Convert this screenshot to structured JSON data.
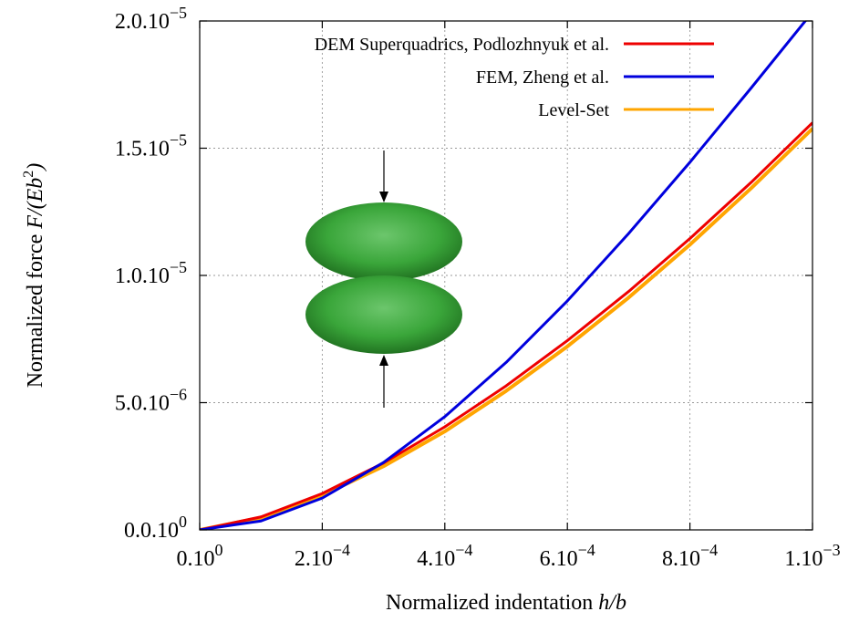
{
  "chart_data": {
    "type": "line",
    "title": "",
    "xlabel": {
      "prefix": "Normalized indentation ",
      "italic": "h/b"
    },
    "ylabel": {
      "prefix": "Normalized force ",
      "italic_pre": "F/(Eb",
      "sup": "2",
      "italic_post": ")"
    },
    "xlim": [
      0,
      0.001
    ],
    "ylim": [
      0,
      2e-05
    ],
    "grid": true,
    "legend_position": "top-right",
    "x_ticks": [
      {
        "value": 0,
        "mantissa": "0.10",
        "exp": "0"
      },
      {
        "value": 0.0002,
        "mantissa": "2.10",
        "exp": "−4"
      },
      {
        "value": 0.0004,
        "mantissa": "4.10",
        "exp": "−4"
      },
      {
        "value": 0.0006,
        "mantissa": "6.10",
        "exp": "−4"
      },
      {
        "value": 0.0008,
        "mantissa": "8.10",
        "exp": "−4"
      },
      {
        "value": 0.001,
        "mantissa": "1.10",
        "exp": "−3"
      }
    ],
    "y_ticks": [
      {
        "value": 0,
        "mantissa": "0.0.10",
        "exp": "0"
      },
      {
        "value": 5e-06,
        "mantissa": "5.0.10",
        "exp": "−6"
      },
      {
        "value": 1e-05,
        "mantissa": "1.0.10",
        "exp": "−5"
      },
      {
        "value": 1.5e-05,
        "mantissa": "1.5.10",
        "exp": "−5"
      },
      {
        "value": 2e-05,
        "mantissa": "2.0.10",
        "exp": "−5"
      }
    ],
    "series": [
      {
        "name": "DEM Superquadrics, Podlozhnyuk et al.",
        "color": "#ee0000",
        "x": [
          0,
          0.0001,
          0.0002,
          0.0003,
          0.0004,
          0.0005,
          0.0006,
          0.0007,
          0.0008,
          0.0009,
          0.001
        ],
        "y": [
          0,
          5.1e-07,
          1.43e-06,
          2.63e-06,
          4.05e-06,
          5.66e-06,
          7.44e-06,
          9.37e-06,
          1.145e-05,
          1.366e-05,
          1.6e-05
        ]
      },
      {
        "name": "FEM, Zheng et al.",
        "color": "#0000dd",
        "x": [
          0,
          0.0001,
          0.0002,
          0.0003,
          0.0004,
          0.0005,
          0.0006,
          0.0007,
          0.0008,
          0.0009,
          0.001
        ],
        "y": [
          0,
          3.5e-07,
          1.25e-06,
          2.65e-06,
          4.45e-06,
          6.58e-06,
          9e-06,
          1.165e-05,
          1.445e-05,
          1.737e-05,
          2.035e-05
        ]
      },
      {
        "name": "Level-Set",
        "color": "#ffa500",
        "x": [
          0,
          0.0001,
          0.0002,
          0.0003,
          0.0004,
          0.0005,
          0.0006,
          0.0007,
          0.0008,
          0.0009,
          0.001
        ],
        "y": [
          0,
          4.8e-07,
          1.36e-06,
          2.5e-06,
          3.87e-06,
          5.46e-06,
          7.21e-06,
          9.13e-06,
          1.121e-05,
          1.343e-05,
          1.577e-05
        ]
      }
    ]
  },
  "inset": {
    "icon": "two-ellipsoids-under-compression",
    "body_color": "#3aa63a",
    "arrow_color": "#000000"
  }
}
